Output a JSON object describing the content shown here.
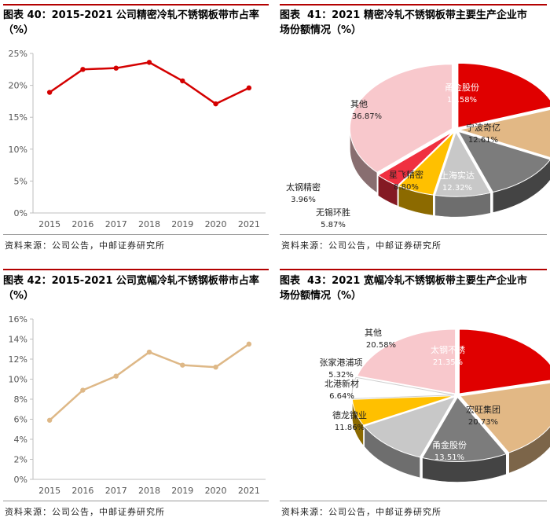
{
  "panels": [
    {
      "title": "图表 40：2015-2021 公司精密冷轧不锈钢板带市占率\n（%）",
      "source": "资料来源：公司公告，中邮证券研究所"
    },
    {
      "title": "图表  41：2021 精密冷轧不锈钢板带主要生产企业市\n场份额情况（%）",
      "source": "资料来源：公司公告，中邮证券研究所"
    },
    {
      "title": "图表 42：2015-2021 公司宽幅冷轧不锈钢板带市占率\n（%）",
      "source": "资料来源：公司公告，中邮证券研究所"
    },
    {
      "title": "图表  43：2021 宽幅冷轧不锈钢板带主要生产企业市\n场份额情况（%）",
      "source": "资料来源：公司公告，中邮证券研究所"
    }
  ],
  "chart_data": [
    {
      "type": "line",
      "title": "",
      "x": [
        "2015",
        "2016",
        "2017",
        "2018",
        "2019",
        "2020",
        "2021"
      ],
      "values": [
        18.9,
        22.5,
        22.7,
        23.6,
        20.7,
        17.1,
        19.6
      ],
      "ylim": [
        0,
        25
      ],
      "yticks": [
        0,
        5,
        10,
        15,
        20,
        25
      ],
      "ytick_labels": [
        "0%",
        "5%",
        "10%",
        "15%",
        "20%",
        "25%"
      ],
      "color": "#d40000",
      "grid": false
    },
    {
      "type": "pie",
      "slices": [
        {
          "label": "甬金股份",
          "value": 19.58,
          "text": "19.58%",
          "color": "#e00000"
        },
        {
          "label": "宁波奇亿",
          "value": 12.61,
          "text": "12.61%",
          "color": "#e2b885"
        },
        {
          "label": "上海实达",
          "value": 12.32,
          "text": "12.32%",
          "color": "#7c7c7c"
        },
        {
          "label": "星飞精密",
          "value": 8.8,
          "text": "8.80%",
          "color": "#c8c8c8"
        },
        {
          "label": "无锡环胜",
          "value": 5.87,
          "text": "5.87%",
          "color": "#ffc000"
        },
        {
          "label": "太钢精密",
          "value": 3.96,
          "text": "3.96%",
          "color": "#f03040"
        },
        {
          "label": "其他",
          "value": 36.87,
          "text": "36.87%",
          "color": "#f8c8cc"
        }
      ]
    },
    {
      "type": "line",
      "title": "",
      "x": [
        "2015",
        "2016",
        "2017",
        "2018",
        "2019",
        "2020",
        "2021"
      ],
      "values": [
        5.9,
        8.9,
        10.3,
        12.7,
        11.4,
        11.2,
        13.5
      ],
      "ylim": [
        0,
        16
      ],
      "yticks": [
        0,
        2,
        4,
        6,
        8,
        10,
        12,
        14,
        16
      ],
      "ytick_labels": [
        "0%",
        "2%",
        "4%",
        "6%",
        "8%",
        "10%",
        "12%",
        "14%",
        "16%"
      ],
      "color": "#deb887",
      "grid": false
    },
    {
      "type": "pie",
      "slices": [
        {
          "label": "太钢不锈",
          "value": 21.35,
          "text": "21.35%",
          "color": "#e00000"
        },
        {
          "label": "宏旺集团",
          "value": 20.73,
          "text": "20.73%",
          "color": "#e2b885"
        },
        {
          "label": "甬金股份",
          "value": 13.51,
          "text": "13.51%",
          "color": "#7c7c7c"
        },
        {
          "label": "德龙镍业",
          "value": 11.86,
          "text": "11.86%",
          "color": "#c8c8c8"
        },
        {
          "label": "北港新材",
          "value": 6.64,
          "text": "6.64%",
          "color": "#ffc000"
        },
        {
          "label": "张家港浦项",
          "value": 5.32,
          "text": "5.32%",
          "color": "#ffffff"
        },
        {
          "label": "其他",
          "value": 20.58,
          "text": "20.58%",
          "color": "#f8c8cc"
        }
      ]
    }
  ]
}
